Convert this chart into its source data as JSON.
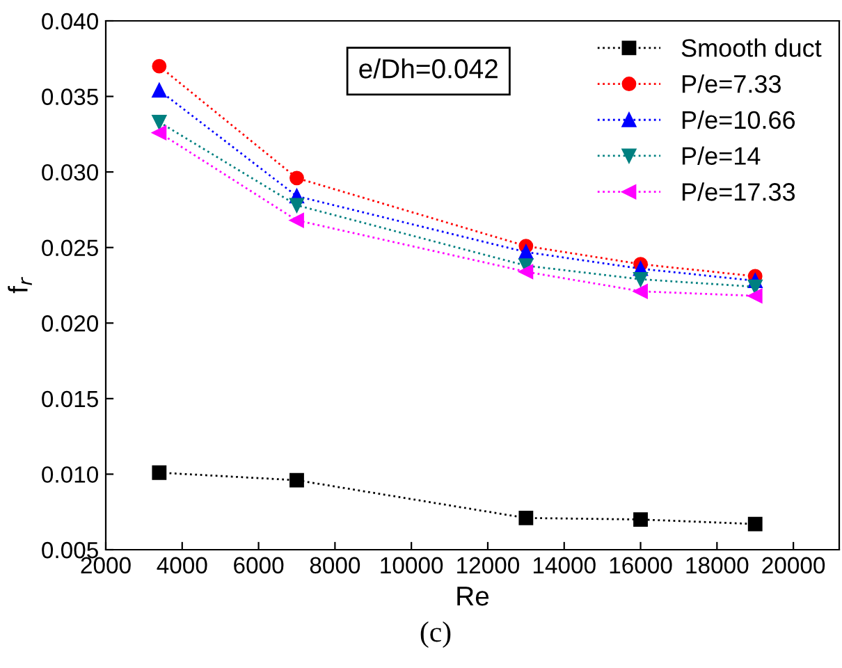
{
  "chart_data": {
    "type": "line",
    "xlabel": "Re",
    "ylabel": "f$_{r}$",
    "x": [
      3400,
      7000,
      13000,
      16000,
      19000
    ],
    "series": [
      {
        "name": "Smooth duct",
        "color": "#000000",
        "marker": "square",
        "values": [
          0.0101,
          0.0096,
          0.0071,
          0.007,
          0.0067
        ]
      },
      {
        "name": "P/e=7.33",
        "color": "#ff0000",
        "marker": "circle",
        "values": [
          0.037,
          0.0296,
          0.0251,
          0.0239,
          0.0231
        ]
      },
      {
        "name": "P/e=10.66",
        "color": "#0000ff",
        "marker": "triangle",
        "values": [
          0.0354,
          0.0284,
          0.0247,
          0.0236,
          0.0228
        ]
      },
      {
        "name": "P/e=14",
        "color": "#008080",
        "marker": "triangle_down",
        "values": [
          0.0333,
          0.0278,
          0.0238,
          0.0229,
          0.0224
        ]
      },
      {
        "name": "P/e=17.33",
        "color": "#ff00ff",
        "marker": "triangle_left",
        "values": [
          0.0326,
          0.0268,
          0.0234,
          0.0221,
          0.0218
        ]
      }
    ],
    "line_style": "dotted",
    "xlim": [
      2000,
      21200
    ],
    "xticks": [
      2000,
      4000,
      6000,
      8000,
      10000,
      12000,
      14000,
      16000,
      18000,
      20000
    ],
    "ylim": [
      0.005,
      0.04
    ],
    "yticks": [
      {
        "value": 0.005,
        "label": "0.005"
      },
      {
        "value": 0.01,
        "label": "0.010"
      },
      {
        "value": 0.015,
        "label": "0.015"
      },
      {
        "value": 0.02,
        "label": "0.020"
      },
      {
        "value": 0.025,
        "label": "0.025"
      },
      {
        "value": 0.03,
        "label": "0.030"
      },
      {
        "value": 0.035,
        "label": "0.035"
      },
      {
        "value": 0.04,
        "label": "0.040"
      }
    ],
    "grid": false,
    "legend": "top right",
    "annotations": [
      "e/Dh=0.042",
      "(c)"
    ]
  }
}
